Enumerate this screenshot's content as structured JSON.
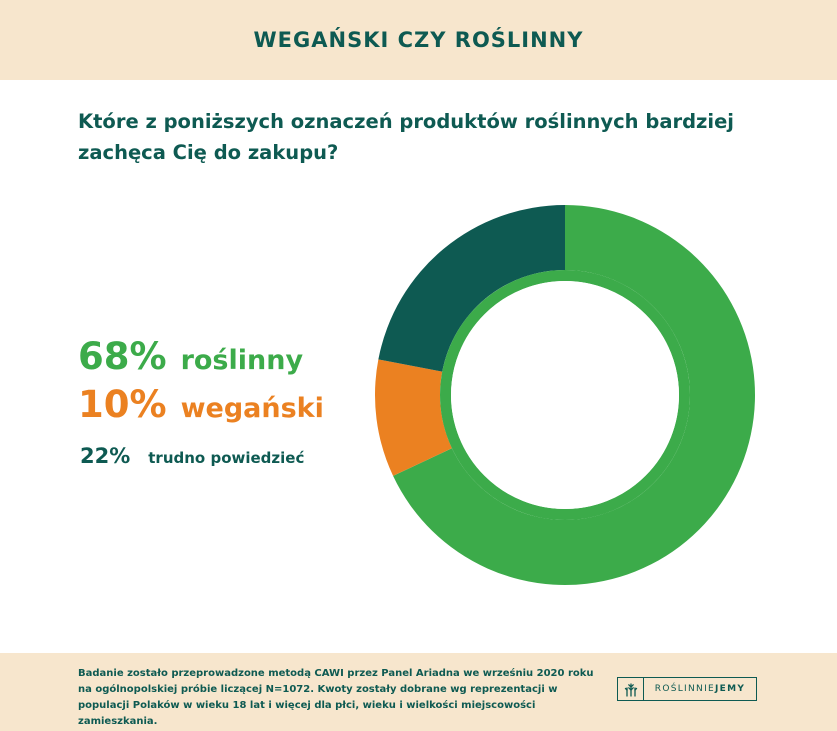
{
  "header": {
    "title": "WEGAŃSKI CZY ROŚLINNY"
  },
  "question": "Które z poniższych oznaczeń produktów roślinnych bardziej zachęca Cię do zakupu?",
  "colors": {
    "green": "#3cab4a",
    "orange": "#eb8121",
    "dark_green": "#0e5a52",
    "beige": "#f7e6cd"
  },
  "legend": [
    {
      "pct": "68%",
      "label": "roślinny"
    },
    {
      "pct": "10%",
      "label": "wegański"
    },
    {
      "pct": "22%",
      "label": "trudno powiedzieć"
    }
  ],
  "chart_data": {
    "type": "pie",
    "variant": "donut",
    "categories": [
      "roślinny",
      "wegański",
      "trudno powiedzieć"
    ],
    "values": [
      68,
      10,
      22
    ],
    "unit": "%",
    "colors": [
      "#3cab4a",
      "#eb8121",
      "#0e5a52"
    ],
    "start": "top, clockwise",
    "legend_position": "left"
  },
  "footer": {
    "note": "Badanie zostało przeprowadzone metodą CAWI przez Panel Ariadna we wrześniu 2020 roku na ogólnopolskiej próbie liczącej N=1072. Kwoty zostały dobrane wg reprezentacji w populacji Polaków w wieku 18 lat i więcej dla płci, wieku i wielkości miejscowości zamieszkania.",
    "logo_part1": "ROŚLINNIE",
    "logo_part2": "JEMY",
    "logo_icon": "wheat-icon"
  }
}
